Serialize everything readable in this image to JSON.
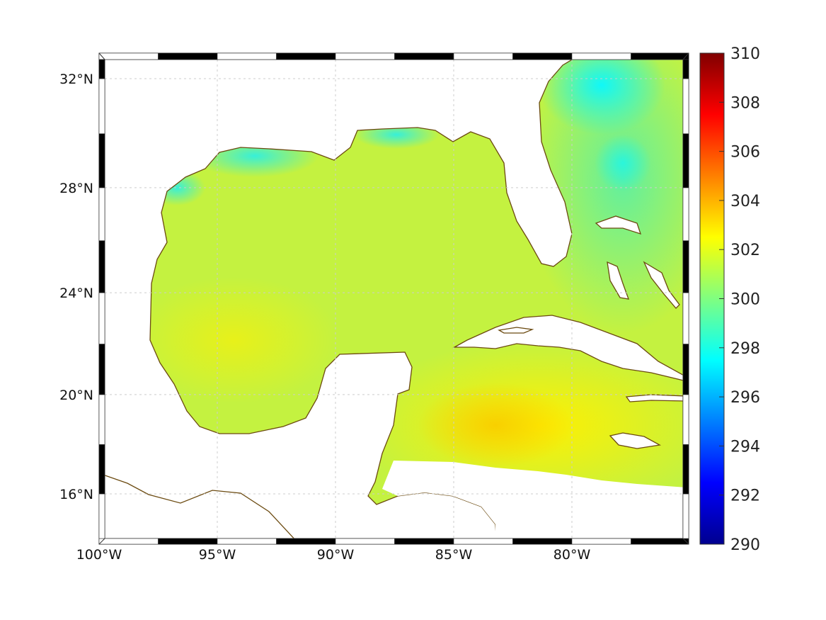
{
  "map": {
    "variable_unit_hint": "",
    "lon_ticks": [
      {
        "lon": -100,
        "label": "100°W"
      },
      {
        "lon": -95,
        "label": "95°W"
      },
      {
        "lon": -90,
        "label": "90°W"
      },
      {
        "lon": -85,
        "label": "85°W"
      },
      {
        "lon": -80,
        "label": "80°W"
      }
    ],
    "lat_ticks": [
      {
        "lat": 32,
        "label": "32°N"
      },
      {
        "lat": 28,
        "label": "28°N"
      },
      {
        "lat": 24,
        "label": "24°N"
      },
      {
        "lat": 20,
        "label": "20°N"
      },
      {
        "lat": 16,
        "label": "16°N"
      }
    ],
    "lon_range": [
      -100,
      -75
    ],
    "lat_range": [
      14,
      33
    ],
    "coast_color": "#6b4a10"
  },
  "colorbar": {
    "min": 290,
    "max": 310,
    "ticks": [
      "290",
      "292",
      "294",
      "296",
      "298",
      "300",
      "302",
      "304",
      "306",
      "308",
      "310"
    ],
    "colormap": "jet"
  }
}
